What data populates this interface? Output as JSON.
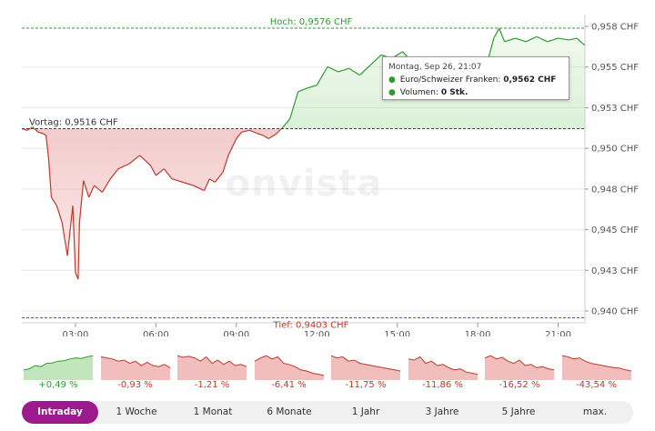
{
  "chart_data": {
    "type": "area",
    "title": "",
    "xlabel": "",
    "ylabel": "",
    "x_ticks": [
      "03:00",
      "06:00",
      "09:00",
      "12:00",
      "15:00",
      "18:00",
      "21:00"
    ],
    "y_ticks": [
      "0,958 CHF",
      "0,955 CHF",
      "0,953 CHF",
      "0,950 CHF",
      "0,948 CHF",
      "0,945 CHF",
      "0,943 CHF",
      "0,940 CHF"
    ],
    "ylim": [
      0.94,
      0.9582
    ],
    "xlim": [
      1.0,
      22.0
    ],
    "previous_close": 0.9516,
    "series": [
      {
        "values_x": [
          1.0,
          1.2,
          1.4,
          1.6,
          1.8,
          1.9,
          2.0,
          2.1,
          2.3,
          2.5,
          2.7,
          2.9,
          3.0,
          3.1,
          3.15,
          3.3,
          3.5,
          3.7,
          4.0,
          4.3,
          4.6,
          5.0,
          5.4,
          5.8,
          6.0,
          6.3,
          6.6,
          7.0,
          7.4,
          7.8,
          8.0,
          8.2,
          8.5,
          8.7,
          9.0,
          9.2,
          9.5,
          9.8,
          10.0,
          10.2,
          10.5,
          10.8,
          11.0,
          11.3,
          11.6,
          12.0,
          12.4,
          12.8,
          13.2,
          13.6,
          14.0,
          14.4,
          14.8,
          15.2,
          15.6,
          16.0,
          16.4,
          16.8,
          17.2,
          17.6,
          18.0,
          18.4,
          18.6,
          18.8,
          19.0,
          19.4,
          19.8,
          20.2,
          20.6,
          21.0,
          21.4,
          21.7,
          21.9,
          22.0
        ],
        "values_y": [
          0.9516,
          0.9515,
          0.9517,
          0.9514,
          0.9513,
          0.9512,
          0.9498,
          0.9475,
          0.947,
          0.946,
          0.944,
          0.947,
          0.943,
          0.9426,
          0.946,
          0.9485,
          0.9475,
          0.9482,
          0.9478,
          0.9486,
          0.9492,
          0.9495,
          0.95,
          0.9494,
          0.9488,
          0.9492,
          0.9486,
          0.9484,
          0.9482,
          0.9479,
          0.9486,
          0.9484,
          0.949,
          0.95,
          0.951,
          0.9514,
          0.9515,
          0.9513,
          0.9512,
          0.951,
          0.9513,
          0.9518,
          0.9522,
          0.9538,
          0.954,
          0.9542,
          0.9553,
          0.955,
          0.9552,
          0.9548,
          0.9554,
          0.956,
          0.9558,
          0.9562,
          0.9555,
          0.9546,
          0.9548,
          0.955,
          0.9556,
          0.9559,
          0.9554,
          0.9558,
          0.957,
          0.9576,
          0.9568,
          0.957,
          0.9568,
          0.9571,
          0.9568,
          0.957,
          0.9569,
          0.957,
          0.9567,
          0.9566
        ]
      }
    ],
    "legend": "none",
    "grid": true
  },
  "ref_lines": {
    "high_label": "Hoch: 0,9576 CHF",
    "high_value": 0.9576,
    "prev_label": "Vortag: 0,9516 CHF",
    "prev_value": 0.9516,
    "low_label": "Tief: 0,9403 CHF",
    "low_value": 0.9403
  },
  "watermark": "onvista",
  "tooltip": {
    "date": "Montag, Sep 26, 21:07",
    "pair_label": "Euro/Schweizer Franken:",
    "pair_value": "0,9562 CHF",
    "volume_label": "Volumen:",
    "volume_value": "0 Stk."
  },
  "mini_charts": [
    {
      "pct": "+0,49 %",
      "trend": [
        0.3,
        0.35,
        0.5,
        0.45,
        0.6,
        0.62,
        0.7,
        0.72,
        0.8,
        0.85,
        0.82,
        0.9,
        0.95
      ]
    },
    {
      "pct": "-0,93 %",
      "trend": [
        0.9,
        0.85,
        0.8,
        0.7,
        0.75,
        0.6,
        0.7,
        0.5,
        0.65,
        0.5,
        0.45,
        0.55,
        0.4
      ]
    },
    {
      "pct": "-1,21 %",
      "trend": [
        0.95,
        0.88,
        0.92,
        0.85,
        0.7,
        0.9,
        0.6,
        0.75,
        0.55,
        0.7,
        0.5,
        0.55,
        0.45
      ]
    },
    {
      "pct": "-6,41 %",
      "trend": [
        0.7,
        0.85,
        0.95,
        0.8,
        0.9,
        0.6,
        0.55,
        0.45,
        0.3,
        0.25,
        0.15,
        0.1,
        0.05
      ]
    },
    {
      "pct": "-11,75 %",
      "trend": [
        0.95,
        0.85,
        0.9,
        0.7,
        0.75,
        0.6,
        0.55,
        0.5,
        0.45,
        0.4,
        0.35,
        0.3,
        0.25
      ]
    },
    {
      "pct": "-11,86 %",
      "trend": [
        0.8,
        0.75,
        0.9,
        0.6,
        0.7,
        0.5,
        0.55,
        0.4,
        0.3,
        0.35,
        0.2,
        0.15,
        0.1
      ]
    },
    {
      "pct": "-16,52 %",
      "trend": [
        0.85,
        0.95,
        0.8,
        0.88,
        0.7,
        0.6,
        0.75,
        0.5,
        0.55,
        0.4,
        0.45,
        0.35,
        0.3
      ]
    },
    {
      "pct": "-43,54 %",
      "trend": [
        0.95,
        0.9,
        0.8,
        0.85,
        0.7,
        0.6,
        0.55,
        0.5,
        0.45,
        0.4,
        0.38,
        0.3,
        0.25
      ]
    }
  ],
  "tabs": [
    "Intraday",
    "1 Woche",
    "1 Monat",
    "6 Monate",
    "1 Jahr",
    "3 Jahre",
    "5 Jahre",
    "max."
  ],
  "active_tab": 0,
  "colors": {
    "up": "#2e9b2e",
    "down": "#c0392b",
    "up_fill": "#b7e2b0",
    "down_fill": "#eeb2b2",
    "accent": "#9c1a8e"
  }
}
